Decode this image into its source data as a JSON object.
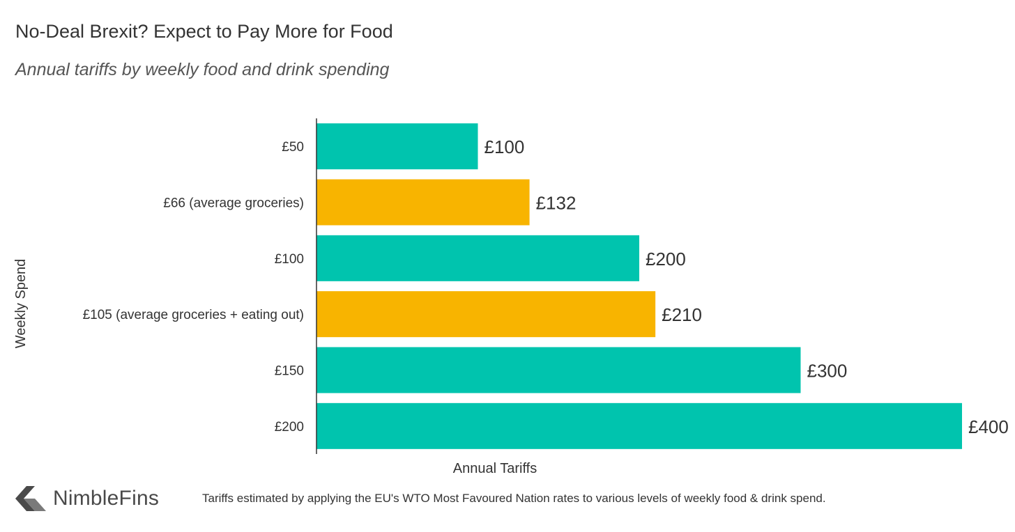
{
  "header": {
    "title": "No-Deal Brexit? Expect to Pay More for Food",
    "subtitle": "Annual tariffs by weekly food and drink spending"
  },
  "footer": {
    "brand": "NimbleFins",
    "note": "Tariffs estimated by applying the EU's WTO Most Favoured Nation rates to various levels of weekly food & drink spend."
  },
  "chart_data": {
    "type": "bar",
    "orientation": "horizontal",
    "title": "No-Deal Brexit? Expect to Pay More for Food",
    "subtitle": "Annual tariffs by weekly food and drink spending",
    "xlabel": "Annual Tariffs",
    "ylabel": "Weekly Spend",
    "xlim": [
      0,
      400
    ],
    "grid": false,
    "categories": [
      "£50",
      "£66 (average groceries)",
      "£100",
      "£105 (average groceries + eating out)",
      "£150",
      "£200"
    ],
    "values": [
      100,
      132,
      200,
      210,
      300,
      400
    ],
    "data_labels": [
      "£100",
      "£132",
      "£200",
      "£210",
      "£300",
      "£400"
    ],
    "bar_colors": [
      "#00c4ae",
      "#f8b400",
      "#00c4ae",
      "#f8b400",
      "#00c4ae",
      "#00c4ae"
    ]
  }
}
